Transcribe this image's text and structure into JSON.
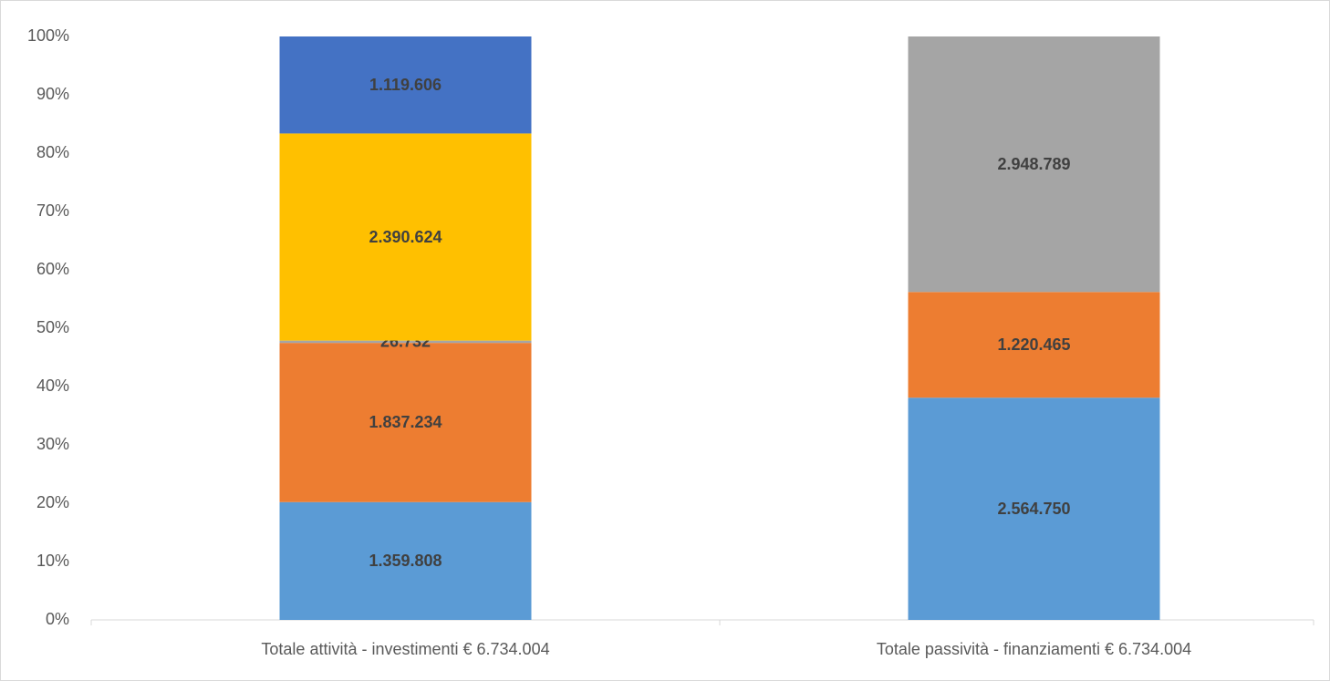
{
  "chart_data": {
    "type": "bar",
    "stacking": "percent",
    "categories": [
      "Totale attività - investimenti € 6.734.004",
      "Totale passività - finanziamenti € 6.734.004"
    ],
    "series": [
      {
        "color": "#5b9bd5",
        "values": [
          1359808,
          2564750
        ],
        "value_labels": [
          "1.359.808",
          "2.564.750"
        ]
      },
      {
        "color": "#ed7d31",
        "values": [
          1837234,
          1220465
        ],
        "value_labels": [
          "1.837.234",
          "1.220.465"
        ]
      },
      {
        "color": "#a5a5a5",
        "values": [
          26732,
          2948789
        ],
        "value_labels": [
          "26.732",
          "2.948.789"
        ]
      },
      {
        "color": "#ffc000",
        "values": [
          2390624,
          null
        ],
        "value_labels": [
          "2.390.624",
          null
        ]
      },
      {
        "color": "#4472c4",
        "values": [
          1119606,
          null
        ],
        "value_labels": [
          "1.119.606",
          null
        ]
      }
    ],
    "ylim": [
      0,
      100
    ],
    "yticks": [
      {
        "value": 0,
        "label": "0%"
      },
      {
        "value": 10,
        "label": "10%"
      },
      {
        "value": 20,
        "label": "20%"
      },
      {
        "value": 30,
        "label": "30%"
      },
      {
        "value": 40,
        "label": "40%"
      },
      {
        "value": 50,
        "label": "50%"
      },
      {
        "value": 60,
        "label": "60%"
      },
      {
        "value": 70,
        "label": "70%"
      },
      {
        "value": 80,
        "label": "80%"
      },
      {
        "value": 90,
        "label": "90%"
      },
      {
        "value": 100,
        "label": "100%"
      }
    ],
    "grid": false
  }
}
